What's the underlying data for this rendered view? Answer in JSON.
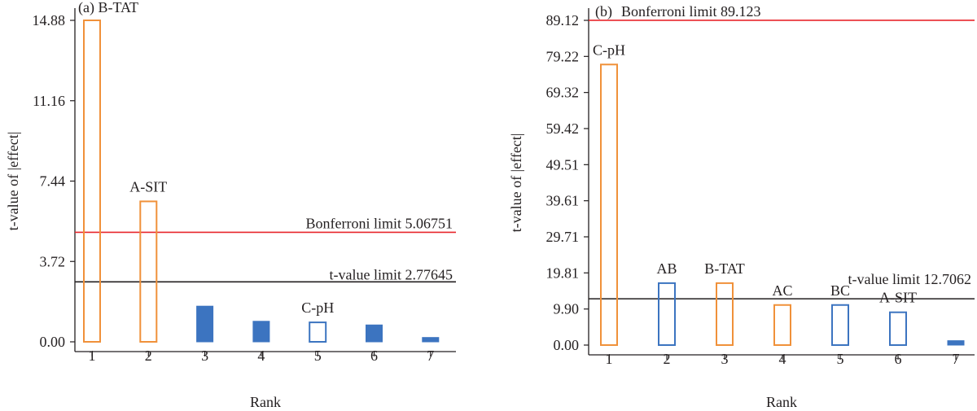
{
  "colors": {
    "orange": "#f0913a",
    "blue": "#3c74c0",
    "red": "#e8262b",
    "black": "#231f20"
  },
  "chart_data": [
    {
      "type": "bar",
      "title": "(a) B-TAT",
      "xlabel": "Rank",
      "ylabel": "t-value of |effect|",
      "ylim": [
        0,
        14.88
      ],
      "yticks": [
        0,
        3.72,
        7.44,
        11.16,
        14.88
      ],
      "ytick_labels": [
        "0.00",
        "3.72",
        "7.44",
        "11.16",
        "14.88"
      ],
      "categories": [
        "1",
        "2",
        "3",
        "4",
        "5",
        "6",
        "7"
      ],
      "bars": [
        {
          "rank": 1,
          "value": 14.88,
          "label": "",
          "color": "orange",
          "style": "outline"
        },
        {
          "rank": 2,
          "value": 6.5,
          "label": "A-SIT",
          "color": "orange",
          "style": "outline"
        },
        {
          "rank": 3,
          "value": 1.65,
          "label": "",
          "color": "blue",
          "style": "filled"
        },
        {
          "rank": 4,
          "value": 0.95,
          "label": "",
          "color": "blue",
          "style": "filled"
        },
        {
          "rank": 5,
          "value": 0.9,
          "label": "C-pH",
          "color": "blue",
          "style": "outline"
        },
        {
          "rank": 6,
          "value": 0.78,
          "label": "",
          "color": "blue",
          "style": "filled"
        },
        {
          "rank": 7,
          "value": 0.2,
          "label": "",
          "color": "blue",
          "style": "filled"
        }
      ],
      "limits": [
        {
          "name": "bonferroni",
          "value": 5.06751,
          "label": "Bonferroni limit 5.06751",
          "color": "red"
        },
        {
          "name": "t-value",
          "value": 2.77645,
          "label": "t-value limit 2.77645",
          "color": "black"
        }
      ]
    },
    {
      "type": "bar",
      "title": "(b)",
      "xlabel": "Rank",
      "ylabel": "t-value of |effect|",
      "ylim": [
        0,
        89.12
      ],
      "yticks": [
        0,
        9.9,
        19.81,
        29.71,
        39.61,
        49.51,
        59.42,
        69.32,
        79.22,
        89.12
      ],
      "ytick_labels": [
        "0.00",
        "9.90",
        "19.81",
        "29.71",
        "39.61",
        "49.51",
        "59.42",
        "69.32",
        "79.22",
        "89.12"
      ],
      "categories": [
        "1",
        "2",
        "3",
        "4",
        "5",
        "6",
        "7"
      ],
      "bars": [
        {
          "rank": 1,
          "value": 77.0,
          "label": "C-pH",
          "color": "orange",
          "style": "outline"
        },
        {
          "rank": 2,
          "value": 17.0,
          "label": "AB",
          "color": "blue",
          "style": "outline"
        },
        {
          "rank": 3,
          "value": 17.0,
          "label": "B-TAT",
          "color": "orange",
          "style": "outline"
        },
        {
          "rank": 4,
          "value": 11.0,
          "label": "AC",
          "color": "orange",
          "style": "outline"
        },
        {
          "rank": 5,
          "value": 11.0,
          "label": "BC",
          "color": "blue",
          "style": "outline"
        },
        {
          "rank": 6,
          "value": 9.0,
          "label": "A-SIT",
          "color": "blue",
          "style": "outline"
        },
        {
          "rank": 7,
          "value": 1.2,
          "label": "",
          "color": "blue",
          "style": "filled"
        }
      ],
      "limits": [
        {
          "name": "bonferroni",
          "value": 89.123,
          "label": "Bonferroni limit 89.123",
          "color": "red"
        },
        {
          "name": "t-value",
          "value": 12.7062,
          "label": "t-value limit 12.7062",
          "color": "black"
        }
      ]
    }
  ]
}
